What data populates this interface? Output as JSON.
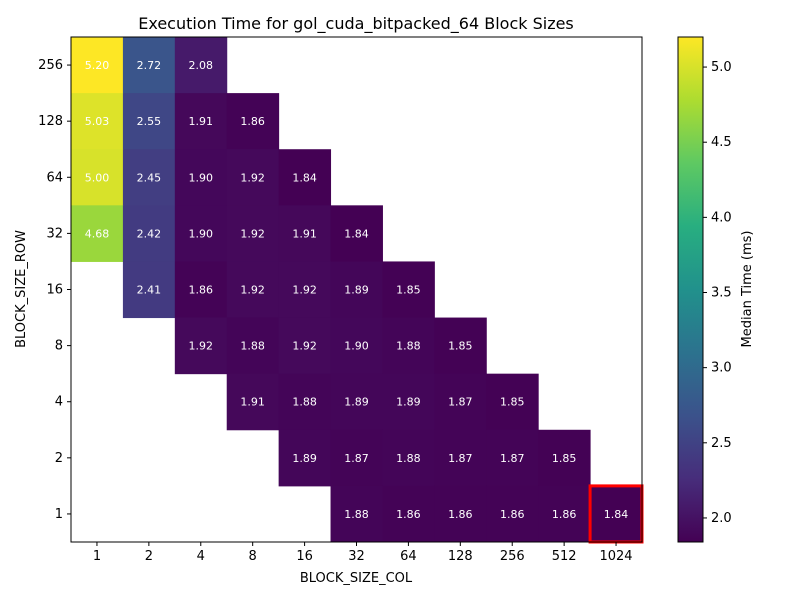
{
  "chart_data": {
    "type": "heatmap",
    "title": "Execution Time for gol_cuda_bitpacked_64 Block Sizes",
    "xlabel": "BLOCK_SIZE_COL",
    "ylabel": "BLOCK_SIZE_ROW",
    "x_categories": [
      "1",
      "2",
      "4",
      "8",
      "16",
      "32",
      "64",
      "128",
      "256",
      "512",
      "1024"
    ],
    "y_categories": [
      "256",
      "128",
      "64",
      "32",
      "16",
      "8",
      "4",
      "2",
      "1"
    ],
    "values": [
      [
        5.2,
        2.72,
        2.08,
        null,
        null,
        null,
        null,
        null,
        null,
        null,
        null
      ],
      [
        5.03,
        2.55,
        1.91,
        1.86,
        null,
        null,
        null,
        null,
        null,
        null,
        null
      ],
      [
        5.0,
        2.45,
        1.9,
        1.92,
        1.84,
        null,
        null,
        null,
        null,
        null,
        null
      ],
      [
        4.68,
        2.42,
        1.9,
        1.92,
        1.91,
        1.84,
        null,
        null,
        null,
        null,
        null
      ],
      [
        null,
        2.41,
        1.86,
        1.92,
        1.92,
        1.89,
        1.85,
        null,
        null,
        null,
        null
      ],
      [
        null,
        null,
        1.92,
        1.88,
        1.92,
        1.9,
        1.88,
        1.85,
        null,
        null,
        null
      ],
      [
        null,
        null,
        null,
        1.91,
        1.88,
        1.89,
        1.89,
        1.87,
        1.85,
        null,
        null
      ],
      [
        null,
        null,
        null,
        null,
        1.89,
        1.87,
        1.88,
        1.87,
        1.87,
        1.85,
        null
      ],
      [
        null,
        null,
        null,
        null,
        null,
        1.88,
        1.86,
        1.86,
        1.86,
        1.86,
        1.84
      ]
    ],
    "highlight": {
      "row": "1",
      "col": "1024",
      "color": "#ff0000"
    },
    "colorbar": {
      "label": "Median Time (ms)",
      "min": 1.84,
      "max": 5.2,
      "ticks": [
        "2.0",
        "2.5",
        "3.0",
        "3.5",
        "4.0",
        "4.5",
        "5.0"
      ],
      "colormap": "viridis"
    }
  }
}
